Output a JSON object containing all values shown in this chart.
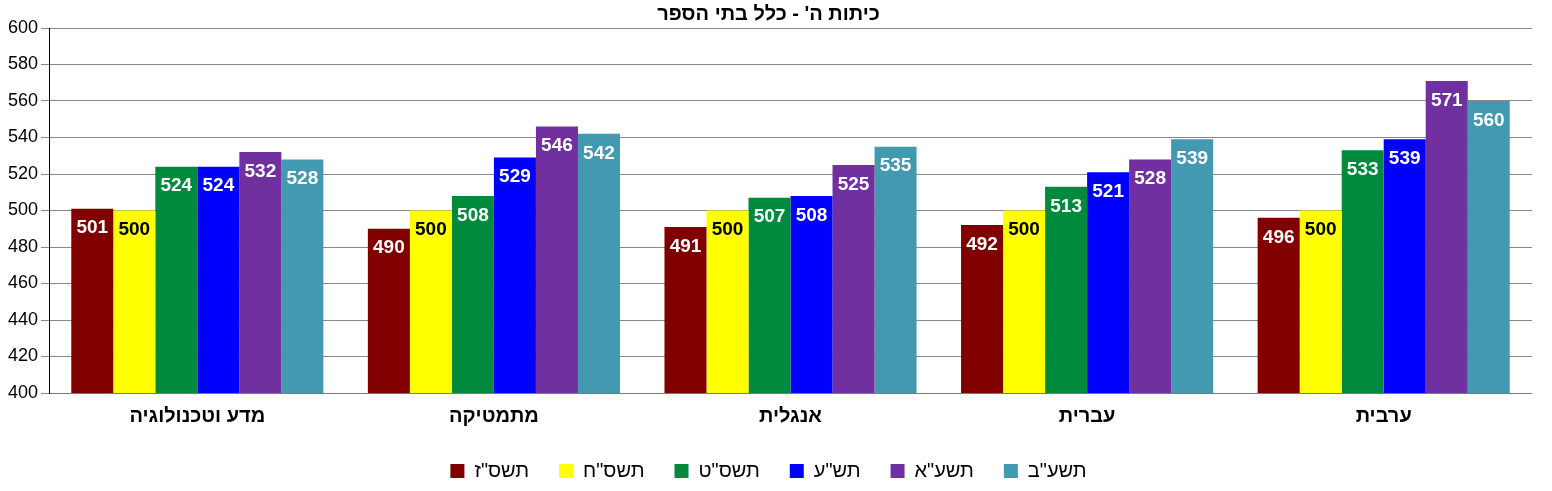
{
  "chart_data": {
    "type": "bar",
    "title": "כיתות ה' - כלל בתי הספר",
    "categories": [
      "מדע וטכנולוגיה",
      "מתמטיקה",
      "אנגלית",
      "עברית",
      "ערבית"
    ],
    "series": [
      {
        "name": "תשס\"ז",
        "color": "#800000",
        "values": [
          501,
          490,
          491,
          492,
          496
        ]
      },
      {
        "name": "תשס\"ח",
        "color": "#ffff00",
        "values": [
          500,
          500,
          500,
          500,
          500
        ]
      },
      {
        "name": "תשס\"ט",
        "color": "#008a3e",
        "values": [
          524,
          508,
          507,
          513,
          533
        ]
      },
      {
        "name": "תש\"ע",
        "color": "#0000ff",
        "values": [
          524,
          529,
          508,
          521,
          539
        ]
      },
      {
        "name": "תשע\"א",
        "color": "#7030a0",
        "values": [
          532,
          546,
          525,
          528,
          571
        ]
      },
      {
        "name": "תשע\"ב",
        "color": "#4299b0",
        "values": [
          528,
          542,
          535,
          539,
          560
        ]
      }
    ],
    "ylim": [
      400,
      600
    ],
    "yticks": [
      400,
      420,
      440,
      460,
      480,
      500,
      520,
      540,
      560,
      580,
      600
    ],
    "grid": "y",
    "legend": "bottom",
    "data_labels": true
  }
}
